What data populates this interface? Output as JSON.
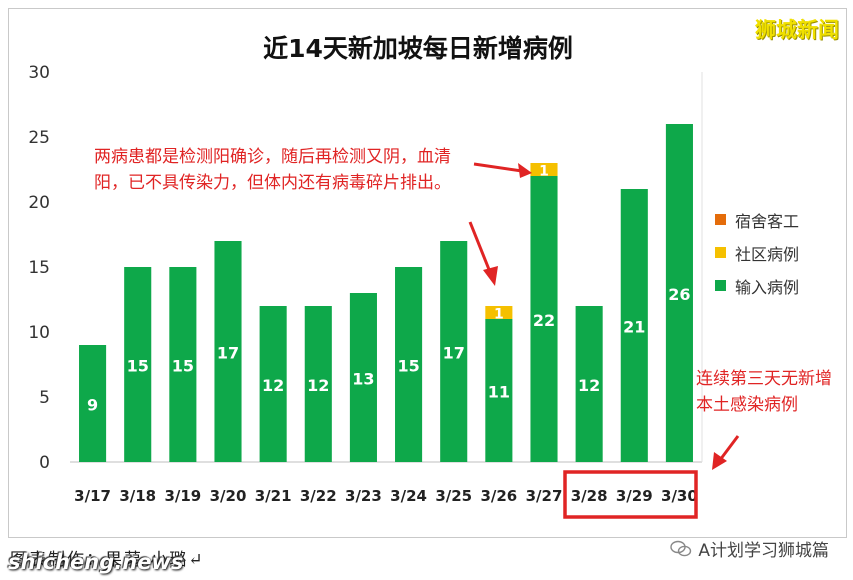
{
  "watermark": "狮城新闻",
  "annotations": {
    "note1": "两病患都是检测阳确诊，随后再检测又阴，血清阳，已不具传染力，但体内还有病毒碎片排出。",
    "note2": "连续第三天无新增本土感染病例"
  },
  "footer": {
    "credit": "图表制作：果蒻·小璐↵",
    "site": "shicheng.news",
    "account": "A计划学习狮城篇"
  },
  "colors": {
    "dormitory": "#e46c0a",
    "community": "#f5c000",
    "imported": "#0ea84a",
    "highlight": "#e02424"
  },
  "chart_data": {
    "type": "bar",
    "stacked": true,
    "title": "近14天新加坡每日新增病例",
    "categories": [
      "3/17",
      "3/18",
      "3/19",
      "3/20",
      "3/21",
      "3/22",
      "3/23",
      "3/24",
      "3/25",
      "3/26",
      "3/27",
      "3/28",
      "3/29",
      "3/30"
    ],
    "series": [
      {
        "name": "宿舍客工",
        "values": [
          0,
          0,
          0,
          0,
          0,
          0,
          0,
          0,
          0,
          0,
          0,
          0,
          0,
          0
        ]
      },
      {
        "name": "社区病例",
        "values": [
          0,
          0,
          0,
          0,
          0,
          0,
          0,
          0,
          0,
          1,
          1,
          0,
          0,
          0
        ]
      },
      {
        "name": "输入病例",
        "values": [
          9,
          15,
          15,
          17,
          12,
          12,
          13,
          15,
          17,
          11,
          22,
          12,
          21,
          26
        ]
      }
    ],
    "ylim": [
      0,
      30
    ],
    "yticks": [
      0,
      5,
      10,
      15,
      20,
      25,
      30
    ],
    "legend_position": "right",
    "grid": false,
    "highlighted_categories": [
      "3/28",
      "3/29",
      "3/30"
    ]
  }
}
